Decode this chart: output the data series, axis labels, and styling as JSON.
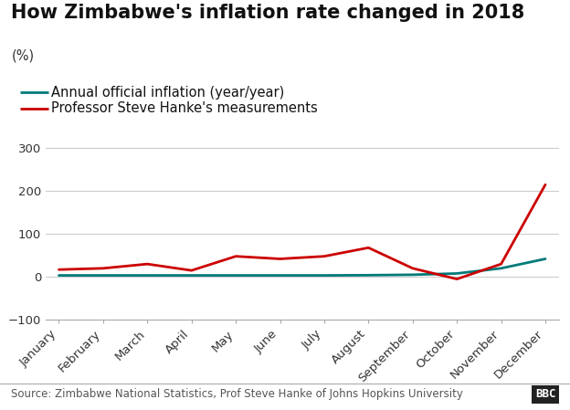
{
  "title": "How Zimbabwe's inflation rate changed in 2018",
  "ylabel": "(%)",
  "source": "Source: Zimbabwe National Statistics, Prof Steve Hanke of Johns Hopkins University",
  "months": [
    "January",
    "February",
    "March",
    "April",
    "May",
    "June",
    "July",
    "August",
    "September",
    "October",
    "November",
    "December"
  ],
  "official_inflation": [
    3.5,
    3.5,
    3.5,
    3.5,
    3.5,
    3.5,
    3.5,
    4.0,
    5.0,
    8.0,
    20.0,
    42.0
  ],
  "hanke_measurements": [
    17,
    20,
    30,
    15,
    48,
    42,
    48,
    68,
    20,
    -5,
    30,
    215
  ],
  "official_color": "#007a78",
  "hanke_color": "#cc0000",
  "legend_official": "Annual official inflation (year/year)",
  "legend_hanke": "Professor Steve Hanke's measurements",
  "ylim": [
    -100,
    330
  ],
  "yticks": [
    -100,
    0,
    100,
    200,
    300
  ],
  "bg_color": "#ffffff",
  "grid_color": "#cccccc",
  "title_fontsize": 15,
  "legend_fontsize": 10.5,
  "ylabel_fontsize": 10.5,
  "axis_fontsize": 9.5,
  "source_fontsize": 8.5,
  "line_width": 2.0
}
